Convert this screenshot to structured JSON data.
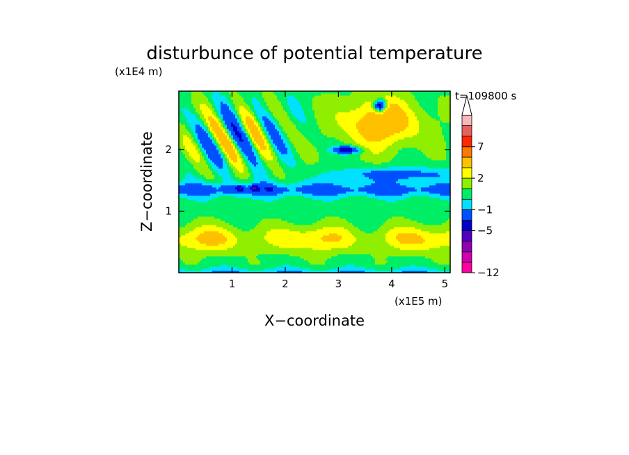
{
  "chart_data": {
    "type": "heatmap",
    "title": "disturbunce of potential temperature",
    "time_label": "t=109800 s",
    "xlabel": "X−coordinate",
    "ylabel": "Z−coordinate",
    "x_scale_label": "(x1E5 m)",
    "y_scale_label": "(x1E4 m)",
    "xlim": [
      0,
      5.1
    ],
    "ylim": [
      0,
      2.95
    ],
    "x_ticks": [
      {
        "value": 1,
        "label": "1"
      },
      {
        "value": 2,
        "label": "2"
      },
      {
        "value": 3,
        "label": "3"
      },
      {
        "value": 4,
        "label": "4"
      },
      {
        "value": 5,
        "label": "5"
      }
    ],
    "y_ticks": [
      {
        "value": 1,
        "label": "1"
      },
      {
        "value": 2,
        "label": "2"
      }
    ],
    "colorbar": {
      "levels": [
        -12,
        -10,
        -8,
        -7,
        -5,
        -3,
        -1,
        0,
        1,
        2,
        3,
        5,
        7,
        9,
        11
      ],
      "colors": [
        "#ff00a0",
        "#d000b0",
        "#9000b0",
        "#5000c0",
        "#0000c8",
        "#0050ff",
        "#00e0ff",
        "#00ee66",
        "#90ee00",
        "#ffff00",
        "#ffc000",
        "#ff7800",
        "#ff2800",
        "#e86060",
        "#f8b8b8"
      ],
      "extend_top_color": "#ffffff",
      "labeled_levels": [
        {
          "value": -12,
          "label": "−12"
        },
        {
          "value": -5,
          "label": "−5"
        },
        {
          "value": -1,
          "label": "−1"
        },
        {
          "value": 2,
          "label": "2"
        },
        {
          "value": 7,
          "label": "7"
        }
      ]
    },
    "field_features": [
      {
        "name": "surface warm layer",
        "x": [
          0.2,
          5.1
        ],
        "z": [
          0.2,
          0.8
        ],
        "value": 3
      },
      {
        "name": "cool band",
        "x": [
          0,
          5.1
        ],
        "z": [
          1.2,
          1.5
        ],
        "value": -1
      },
      {
        "name": "cold lens row",
        "x": [
          0.7,
          2.0
        ],
        "z": [
          1.3,
          1.45
        ],
        "value": -5
      },
      {
        "name": "upper wave train",
        "x": [
          0,
          2.4
        ],
        "z": [
          1.5,
          2.9
        ],
        "value": 3
      },
      {
        "name": "upper warm region",
        "x": [
          3.0,
          4.6
        ],
        "z": [
          2.0,
          2.8
        ],
        "value": 5
      },
      {
        "name": "cold spot",
        "x": [
          3.7,
          3.9
        ],
        "z": [
          2.6,
          2.8
        ],
        "value": -5
      }
    ]
  }
}
